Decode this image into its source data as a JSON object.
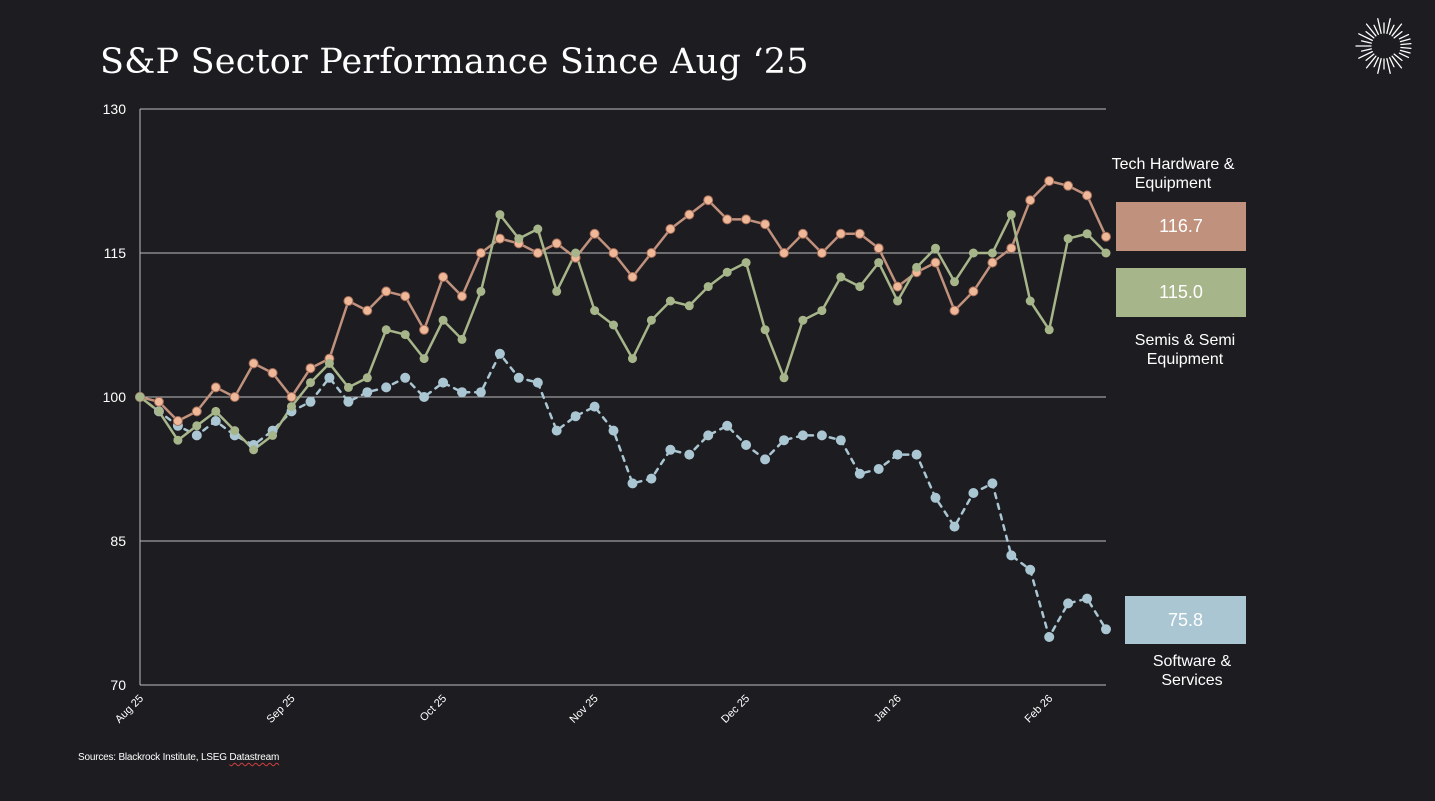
{
  "title": "S&P Sector Performance Since Aug ‘25",
  "source": {
    "prefix": "Sources: Blackrock Institute, LSEG ",
    "name": "Datastream"
  },
  "colors": {
    "background": "#1d1c20",
    "grid": "#bdbdbd",
    "tech_hardware": "#c0917d",
    "tech_hardware_marker": "#efb899",
    "semis": "#a7b68a",
    "software": "#a9c6d2"
  },
  "chart_data": {
    "type": "line",
    "title": "S&P Sector Performance Since Aug ‘25",
    "xlabel": "",
    "ylabel": "",
    "ylim": [
      70,
      130
    ],
    "yticks": [
      70,
      85,
      100,
      115,
      130
    ],
    "grid": true,
    "x_tick_labels": [
      {
        "index": 0,
        "label": "Aug 25"
      },
      {
        "index": 8,
        "label": "Sep 25"
      },
      {
        "index": 16,
        "label": "Oct 25"
      },
      {
        "index": 24,
        "label": "Nov 25"
      },
      {
        "index": 32,
        "label": "Dec 25"
      },
      {
        "index": 40,
        "label": "Jan 26"
      },
      {
        "index": 48,
        "label": "Feb 26"
      }
    ],
    "series": [
      {
        "key": "tech_hardware",
        "name": "Tech Hardware & Equipment",
        "last_value": "116.7",
        "style": "solid",
        "values": [
          100,
          99.5,
          97.5,
          98.5,
          101,
          100,
          103.5,
          102.5,
          100,
          103,
          104,
          110,
          109,
          111,
          110.5,
          107,
          112.5,
          110.5,
          115,
          116.5,
          116,
          115,
          116,
          114.5,
          117,
          115,
          112.5,
          115,
          117.5,
          119,
          120.5,
          118.5,
          118.5,
          118,
          115,
          117,
          115,
          117,
          117,
          115.5,
          111.5,
          113,
          114,
          109,
          111,
          114,
          115.5,
          120.5,
          122.5,
          122,
          121,
          116.7
        ]
      },
      {
        "key": "semis",
        "name": "Semis & Semi Equipment",
        "last_value": "115.0",
        "style": "solid",
        "values": [
          100,
          98.5,
          95.5,
          97,
          98.5,
          96.5,
          94.5,
          96,
          99,
          101.5,
          103.5,
          101,
          102,
          107,
          106.5,
          104,
          108,
          106,
          111,
          119,
          116.5,
          117.5,
          111,
          115,
          109,
          107.5,
          104,
          108,
          110,
          109.5,
          111.5,
          113,
          114,
          107,
          102,
          108,
          109,
          112.5,
          111.5,
          114,
          110,
          113.5,
          115.5,
          112,
          115,
          115,
          119,
          110,
          107,
          116.5,
          117,
          115.0
        ]
      },
      {
        "key": "software",
        "name": "Software & Services",
        "last_value": "75.8",
        "style": "dashed",
        "values": [
          100,
          98.5,
          97,
          96,
          97.5,
          96,
          95,
          96.5,
          98.5,
          99.5,
          102,
          99.5,
          100.5,
          101,
          102,
          100,
          101.5,
          100.5,
          100.5,
          104.5,
          102,
          101.5,
          96.5,
          98,
          99,
          96.5,
          91,
          91.5,
          94.5,
          94,
          96,
          97,
          95,
          93.5,
          95.5,
          96,
          96,
          95.5,
          92,
          92.5,
          94,
          94,
          89.5,
          86.5,
          90,
          91,
          83.5,
          82,
          75,
          78.5,
          79,
          75.8
        ]
      }
    ]
  }
}
